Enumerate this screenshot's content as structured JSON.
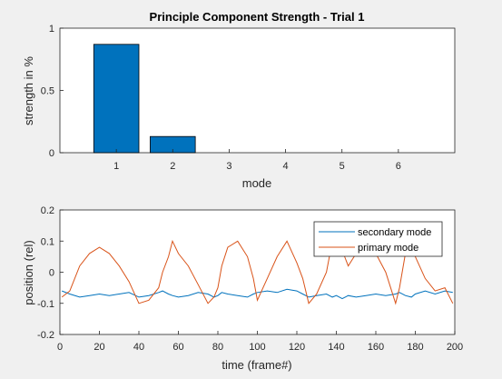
{
  "colors": {
    "figure_bg": "#f0f0f0",
    "axes_bg": "#ffffff",
    "axis": "#262626",
    "bar_fill": "#0072bd",
    "series_secondary": "#0072bd",
    "series_primary": "#d95319"
  },
  "chart_data": [
    {
      "type": "bar",
      "title": "Principle Component Strength - Trial 1",
      "xlabel": "mode",
      "ylabel": "strength in %",
      "categories": [
        "1",
        "2",
        "3",
        "4",
        "5",
        "6"
      ],
      "values": [
        0.87,
        0.13,
        0,
        0,
        0,
        0
      ],
      "xlim": [
        0,
        7
      ],
      "ylim": [
        0,
        1
      ],
      "x_ticks": [
        "1",
        "2",
        "3",
        "4",
        "5",
        "6"
      ],
      "y_ticks": [
        "0",
        "0.5",
        "1"
      ],
      "grid": false
    },
    {
      "type": "line",
      "title": "",
      "xlabel": "time (frame#)",
      "ylabel": "position (rel)",
      "xlim": [
        0,
        200
      ],
      "ylim": [
        -0.2,
        0.2
      ],
      "x_ticks": [
        "0",
        "20",
        "40",
        "60",
        "80",
        "100",
        "120",
        "140",
        "160",
        "180",
        "200"
      ],
      "y_ticks": [
        "-0.2",
        "-0.1",
        "0",
        "0.1",
        "0.2"
      ],
      "legend_position": "top-right",
      "grid": false,
      "x": [
        1,
        5,
        10,
        15,
        20,
        25,
        30,
        35,
        40,
        45,
        50,
        52,
        55,
        57,
        60,
        65,
        70,
        75,
        78,
        80,
        82,
        85,
        90,
        95,
        98,
        100,
        105,
        110,
        115,
        120,
        123,
        126,
        130,
        135,
        138,
        140,
        143,
        146,
        150,
        155,
        160,
        165,
        170,
        172,
        175,
        178,
        180,
        185,
        190,
        195,
        199
      ],
      "series": [
        {
          "name": "secondary mode",
          "values": [
            -0.06,
            -0.07,
            -0.08,
            -0.075,
            -0.07,
            -0.075,
            -0.07,
            -0.065,
            -0.08,
            -0.075,
            -0.065,
            -0.06,
            -0.07,
            -0.075,
            -0.08,
            -0.075,
            -0.065,
            -0.07,
            -0.08,
            -0.075,
            -0.065,
            -0.07,
            -0.075,
            -0.08,
            -0.07,
            -0.065,
            -0.06,
            -0.065,
            -0.055,
            -0.06,
            -0.07,
            -0.08,
            -0.075,
            -0.07,
            -0.08,
            -0.075,
            -0.085,
            -0.075,
            -0.08,
            -0.075,
            -0.07,
            -0.075,
            -0.07,
            -0.065,
            -0.075,
            -0.08,
            -0.07,
            -0.06,
            -0.07,
            -0.06,
            -0.065
          ]
        },
        {
          "name": "primary mode",
          "values": [
            -0.08,
            -0.06,
            0.02,
            0.06,
            0.08,
            0.06,
            0.02,
            -0.03,
            -0.1,
            -0.09,
            -0.05,
            0.0,
            0.05,
            0.1,
            0.06,
            0.02,
            -0.04,
            -0.1,
            -0.08,
            -0.05,
            0.02,
            0.08,
            0.1,
            0.05,
            -0.02,
            -0.09,
            -0.02,
            0.05,
            0.1,
            0.03,
            -0.02,
            -0.1,
            -0.07,
            0.0,
            0.1,
            0.12,
            0.07,
            0.02,
            0.06,
            0.08,
            0.06,
            0.0,
            -0.1,
            -0.05,
            0.06,
            0.08,
            0.05,
            -0.02,
            -0.06,
            -0.05,
            -0.1
          ]
        }
      ]
    }
  ]
}
